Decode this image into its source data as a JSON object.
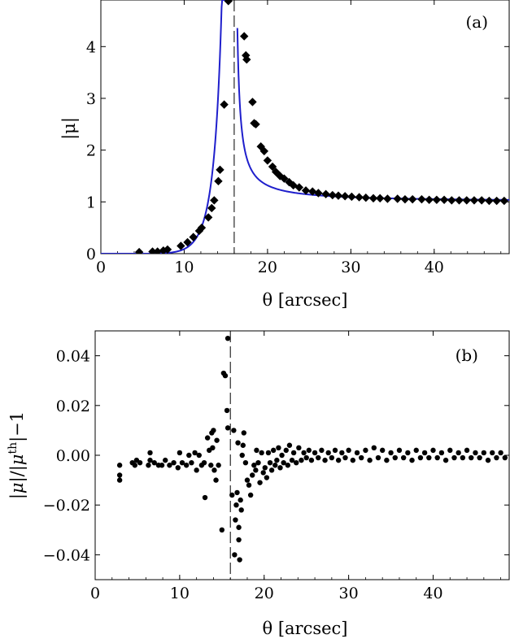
{
  "chart_data": [
    {
      "type": "scatter",
      "panel_label": "(a)",
      "xlabel": "θ [arcsec]",
      "ylabel": "|μ|",
      "xlim": [
        0,
        49
      ],
      "ylim": [
        0,
        4.9
      ],
      "xticks": [
        "0",
        "10",
        "20",
        "30",
        "40"
      ],
      "xtick_values": [
        0,
        10,
        20,
        30,
        40
      ],
      "yticks": [
        "0",
        "1",
        "2",
        "3",
        "4"
      ],
      "ytick_values": [
        0,
        1,
        2,
        3,
        4
      ],
      "critical_line_x": 16,
      "curve_color": "#1f1fcc",
      "marker": "diamond",
      "points": [
        [
          4.6,
          0.03
        ],
        [
          6.2,
          0.04
        ],
        [
          6.8,
          0.04
        ],
        [
          7.5,
          0.06
        ],
        [
          8.0,
          0.08
        ],
        [
          9.6,
          0.15
        ],
        [
          10.4,
          0.22
        ],
        [
          11.1,
          0.32
        ],
        [
          11.8,
          0.44
        ],
        [
          12.1,
          0.5
        ],
        [
          12.9,
          0.7
        ],
        [
          13.3,
          0.88
        ],
        [
          13.6,
          1.03
        ],
        [
          14.1,
          1.4
        ],
        [
          14.3,
          1.62
        ],
        [
          14.8,
          2.88
        ],
        [
          15.3,
          4.88
        ],
        [
          17.2,
          4.2
        ],
        [
          17.4,
          3.83
        ],
        [
          17.5,
          3.75
        ],
        [
          18.2,
          2.93
        ],
        [
          18.4,
          2.52
        ],
        [
          18.6,
          2.5
        ],
        [
          19.2,
          2.07
        ],
        [
          19.6,
          1.98
        ],
        [
          20.0,
          1.8
        ],
        [
          20.6,
          1.68
        ],
        [
          21.0,
          1.58
        ],
        [
          21.5,
          1.5
        ],
        [
          22.0,
          1.45
        ],
        [
          22.6,
          1.38
        ],
        [
          23.1,
          1.32
        ],
        [
          23.8,
          1.28
        ],
        [
          24.6,
          1.22
        ],
        [
          25.4,
          1.2
        ],
        [
          26.1,
          1.17
        ],
        [
          27.0,
          1.15
        ],
        [
          27.8,
          1.13
        ],
        [
          28.5,
          1.12
        ],
        [
          29.3,
          1.11
        ],
        [
          30.1,
          1.1
        ],
        [
          31.0,
          1.09
        ],
        [
          31.8,
          1.08
        ],
        [
          32.7,
          1.07
        ],
        [
          33.5,
          1.07
        ],
        [
          34.4,
          1.06
        ],
        [
          35.6,
          1.06
        ],
        [
          36.5,
          1.05
        ],
        [
          37.4,
          1.05
        ],
        [
          38.5,
          1.05
        ],
        [
          39.4,
          1.04
        ],
        [
          40.3,
          1.04
        ],
        [
          41.2,
          1.04
        ],
        [
          42.1,
          1.03
        ],
        [
          43.0,
          1.03
        ],
        [
          43.9,
          1.03
        ],
        [
          44.8,
          1.03
        ],
        [
          45.7,
          1.03
        ],
        [
          46.6,
          1.02
        ],
        [
          47.5,
          1.02
        ],
        [
          48.4,
          1.02
        ]
      ]
    },
    {
      "type": "scatter",
      "panel_label": "(b)",
      "xlabel": "θ [arcsec]",
      "ylabel": "|μ|/|μ^th|−1",
      "xlim": [
        0,
        49
      ],
      "ylim": [
        -0.05,
        0.05
      ],
      "xticks": [
        "0",
        "10",
        "20",
        "30",
        "40"
      ],
      "xtick_values": [
        0,
        10,
        20,
        30,
        40
      ],
      "yticks": [
        "0.04",
        "0.02",
        "0.00",
        "−0.02",
        "−0.04"
      ],
      "ytick_values": [
        0.04,
        0.02,
        0.0,
        -0.02,
        -0.04
      ],
      "critical_line_x": 16,
      "marker": "circle",
      "points": [
        [
          2.9,
          -0.004
        ],
        [
          2.9,
          -0.008
        ],
        [
          2.9,
          -0.01
        ],
        [
          4.4,
          -0.003
        ],
        [
          4.7,
          -0.004
        ],
        [
          4.9,
          -0.002
        ],
        [
          5.3,
          -0.003
        ],
        [
          6.3,
          -0.004
        ],
        [
          6.5,
          -0.002
        ],
        [
          6.5,
          0.001
        ],
        [
          7.0,
          -0.003
        ],
        [
          7.5,
          -0.004
        ],
        [
          7.9,
          -0.004
        ],
        [
          8.3,
          -0.002
        ],
        [
          8.8,
          -0.004
        ],
        [
          9.3,
          -0.003
        ],
        [
          9.8,
          -0.005
        ],
        [
          10.0,
          0.001
        ],
        [
          10.3,
          -0.003
        ],
        [
          10.8,
          -0.004
        ],
        [
          11.1,
          0.0
        ],
        [
          11.4,
          -0.003
        ],
        [
          11.8,
          0.001
        ],
        [
          12.0,
          -0.006
        ],
        [
          12.3,
          0.0
        ],
        [
          12.6,
          -0.004
        ],
        [
          12.9,
          -0.003
        ],
        [
          13.0,
          -0.017
        ],
        [
          13.3,
          0.007
        ],
        [
          13.5,
          0.002
        ],
        [
          13.7,
          -0.004
        ],
        [
          13.8,
          0.009
        ],
        [
          13.9,
          0.003
        ],
        [
          14.0,
          0.01
        ],
        [
          14.1,
          -0.006
        ],
        [
          14.3,
          -0.01
        ],
        [
          14.4,
          0.006
        ],
        [
          14.6,
          -0.004
        ],
        [
          15.0,
          -0.03
        ],
        [
          15.2,
          0.033
        ],
        [
          15.4,
          0.032
        ],
        [
          15.6,
          0.018
        ],
        [
          15.7,
          0.047
        ],
        [
          15.7,
          0.011
        ],
        [
          16.2,
          -0.016
        ],
        [
          16.4,
          0.01
        ],
        [
          16.5,
          -0.04
        ],
        [
          16.6,
          -0.026
        ],
        [
          16.7,
          -0.02
        ],
        [
          16.8,
          -0.015
        ],
        [
          16.9,
          0.005
        ],
        [
          17.0,
          -0.029
        ],
        [
          17.0,
          -0.034
        ],
        [
          17.1,
          -0.042
        ],
        [
          17.2,
          -0.018
        ],
        [
          17.3,
          -0.022
        ],
        [
          17.4,
          0.0
        ],
        [
          17.5,
          0.004
        ],
        [
          17.6,
          0.009
        ],
        [
          17.8,
          -0.003
        ],
        [
          18.0,
          -0.01
        ],
        [
          18.2,
          -0.012
        ],
        [
          18.4,
          -0.016
        ],
        [
          18.6,
          -0.008
        ],
        [
          18.8,
          -0.004
        ],
        [
          19.0,
          -0.006
        ],
        [
          19.1,
          0.002
        ],
        [
          19.3,
          -0.003
        ],
        [
          19.5,
          -0.011
        ],
        [
          19.7,
          0.001
        ],
        [
          19.9,
          -0.007
        ],
        [
          20.1,
          -0.005
        ],
        [
          20.3,
          -0.009
        ],
        [
          20.5,
          0.001
        ],
        [
          20.7,
          -0.003
        ],
        [
          20.9,
          -0.006
        ],
        [
          21.1,
          0.002
        ],
        [
          21.3,
          -0.004
        ],
        [
          21.5,
          -0.002
        ],
        [
          21.7,
          0.003
        ],
        [
          21.9,
          -0.005
        ],
        [
          22.1,
          0.0
        ],
        [
          22.3,
          -0.003
        ],
        [
          22.6,
          0.002
        ],
        [
          22.8,
          -0.004
        ],
        [
          23.0,
          0.004
        ],
        [
          23.3,
          -0.002
        ],
        [
          23.5,
          0.001
        ],
        [
          23.8,
          -0.003
        ],
        [
          24.1,
          0.003
        ],
        [
          24.4,
          -0.002
        ],
        [
          24.7,
          0.001
        ],
        [
          25.0,
          -0.001
        ],
        [
          25.3,
          0.002
        ],
        [
          25.6,
          -0.002
        ],
        [
          26.0,
          0.001
        ],
        [
          26.4,
          -0.001
        ],
        [
          26.8,
          0.002
        ],
        [
          27.2,
          -0.002
        ],
        [
          27.6,
          0.001
        ],
        [
          28.0,
          -0.001
        ],
        [
          28.4,
          0.002
        ],
        [
          28.8,
          -0.002
        ],
        [
          29.2,
          0.001
        ],
        [
          29.6,
          -0.001
        ],
        [
          30.0,
          0.002
        ],
        [
          30.5,
          -0.002
        ],
        [
          31.0,
          0.001
        ],
        [
          31.5,
          -0.001
        ],
        [
          32.0,
          0.002
        ],
        [
          32.5,
          -0.002
        ],
        [
          33.0,
          0.003
        ],
        [
          33.5,
          -0.001
        ],
        [
          34.0,
          0.002
        ],
        [
          34.5,
          -0.002
        ],
        [
          35.0,
          0.001
        ],
        [
          35.5,
          -0.001
        ],
        [
          36.0,
          0.002
        ],
        [
          36.5,
          -0.001
        ],
        [
          37.0,
          0.001
        ],
        [
          37.5,
          -0.002
        ],
        [
          38.0,
          0.002
        ],
        [
          38.5,
          -0.001
        ],
        [
          39.0,
          0.001
        ],
        [
          39.5,
          -0.001
        ],
        [
          40.0,
          0.002
        ],
        [
          40.5,
          -0.001
        ],
        [
          41.0,
          0.001
        ],
        [
          41.5,
          -0.002
        ],
        [
          42.0,
          0.002
        ],
        [
          42.5,
          -0.001
        ],
        [
          43.0,
          0.001
        ],
        [
          43.5,
          -0.001
        ],
        [
          44.0,
          0.002
        ],
        [
          44.5,
          -0.001
        ],
        [
          45.0,
          0.001
        ],
        [
          45.5,
          -0.001
        ],
        [
          46.0,
          0.001
        ],
        [
          46.5,
          -0.002
        ],
        [
          47.0,
          0.001
        ],
        [
          47.5,
          -0.001
        ],
        [
          48.0,
          0.001
        ],
        [
          48.5,
          -0.001
        ]
      ]
    }
  ]
}
